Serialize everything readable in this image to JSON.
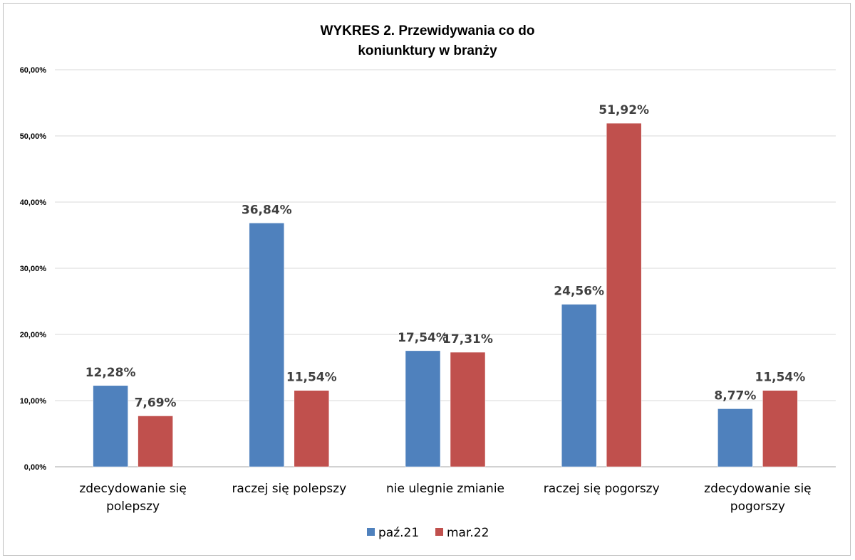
{
  "chart_data": {
    "type": "bar",
    "title": [
      "WYKRES 2. Przewidywania  co do",
      "koniunktury  w branży"
    ],
    "categories": [
      [
        "zdecydowanie się",
        "polepszy"
      ],
      [
        "raczej się polepszy"
      ],
      [
        "nie ulegnie zmianie"
      ],
      [
        "raczej się pogorszy"
      ],
      [
        "zdecydowanie się",
        "pogorszy"
      ]
    ],
    "series": [
      {
        "name": "paź.21",
        "color": "#4f81bd",
        "values": [
          12.28,
          36.84,
          17.54,
          24.56,
          8.77
        ],
        "labels": [
          "12,28%",
          "36,84%",
          "17,54%",
          "24,56%",
          "8,77%"
        ]
      },
      {
        "name": "mar.22",
        "color": "#c0504d",
        "values": [
          7.69,
          11.54,
          17.31,
          51.92,
          11.54
        ],
        "labels": [
          "7,69%",
          "11,54%",
          "17,31%",
          "51,92%",
          "11,54%"
        ]
      }
    ],
    "yticks": [
      0,
      10,
      20,
      30,
      40,
      50,
      60
    ],
    "ytick_labels": [
      "0,00%",
      "10,00%",
      "20,00%",
      "30,00%",
      "40,00%",
      "50,00%",
      "60,00%"
    ],
    "ylim": [
      0,
      60
    ],
    "xlabel": "",
    "ylabel": "",
    "grid": true,
    "legend_position": "bottom"
  }
}
